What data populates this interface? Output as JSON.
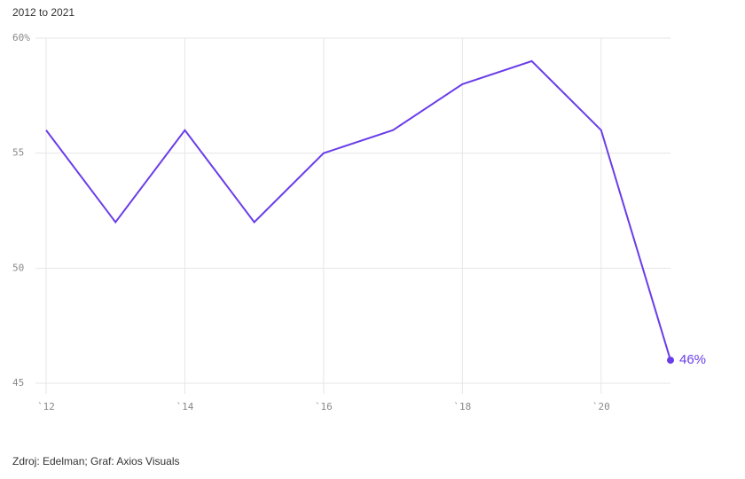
{
  "chart_data": {
    "type": "line",
    "subtitle": "2012 to 2021",
    "x": [
      2012,
      2013,
      2014,
      2015,
      2016,
      2017,
      2018,
      2019,
      2020,
      2021
    ],
    "series": [
      {
        "color": "#6a3de8",
        "values": [
          56,
          52,
          56,
          52,
          55,
          56,
          58,
          59,
          56,
          46
        ],
        "value_labels": [
          null,
          null,
          null,
          null,
          null,
          null,
          null,
          null,
          null,
          "46%"
        ]
      }
    ],
    "xlim": [
      2012,
      2021
    ],
    "xticks": [
      {
        "value": 2012,
        "label": "`12"
      },
      {
        "value": 2014,
        "label": "`14"
      },
      {
        "value": 2016,
        "label": "`16"
      },
      {
        "value": 2018,
        "label": "`18"
      },
      {
        "value": 2020,
        "label": "`20"
      }
    ],
    "ylim": [
      45,
      60
    ],
    "yticks": [
      45,
      50,
      55,
      {
        "value": 60,
        "label": "60%"
      }
    ],
    "grid": true,
    "source": "Zdroj: Edelman; Graf: Axios Visuals"
  }
}
